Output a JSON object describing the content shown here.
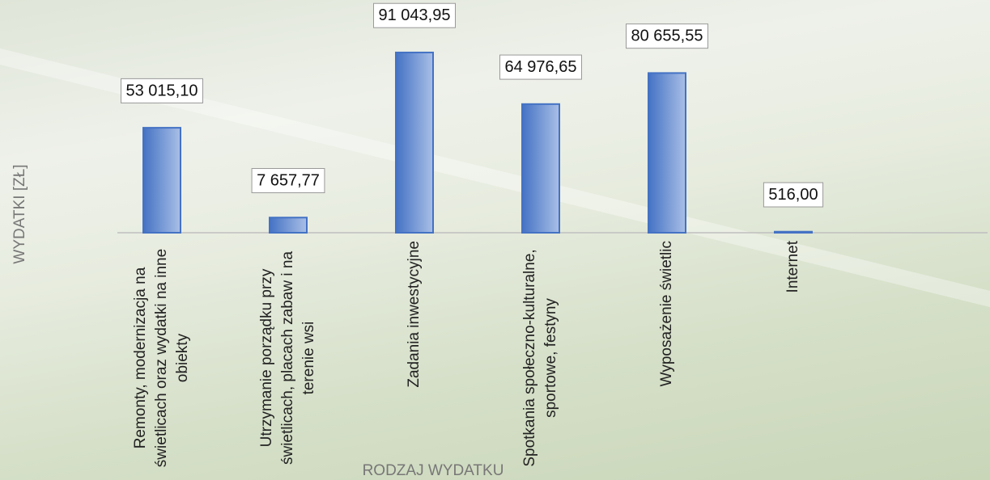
{
  "chart_data": {
    "type": "bar",
    "x_label": "RODZAJ WYDATKU",
    "y_label": "WYDATKI [ZŁ]",
    "categories": [
      "Remonty, modernizacja na świetlicach oraz wydatki na inne obiekty",
      "Utrzymanie porządku przy świetlicach, placach zabaw i na terenie wsi",
      "Zadania inwestycyjne",
      "Spotkania społeczno-kulturalne, sportowe, festyny",
      "Wyposażenie świetlic",
      "Internet"
    ],
    "values": [
      53015.1,
      7657.77,
      91043.95,
      64976.65,
      80655.55,
      516.0
    ],
    "value_labels": [
      "53 015,10",
      "7 657,77",
      "91 043,95",
      "64 976,65",
      "80 655,55",
      "516,00"
    ],
    "color": "#4472c4",
    "ylim": [
      0,
      100000
    ]
  }
}
